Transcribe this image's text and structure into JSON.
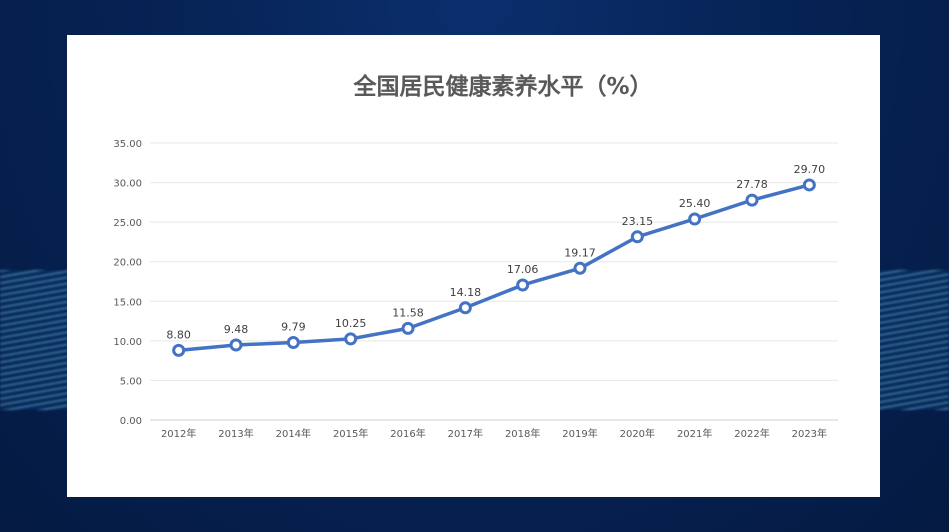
{
  "chart_data": {
    "type": "line",
    "title": "全国居民健康素养水平（%）",
    "xlabel": "",
    "ylabel": "",
    "categories": [
      "2012年",
      "2013年",
      "2014年",
      "2015年",
      "2016年",
      "2017年",
      "2018年",
      "2019年",
      "2020年",
      "2021年",
      "2022年",
      "2023年"
    ],
    "values": [
      8.8,
      9.48,
      9.79,
      10.25,
      11.58,
      14.18,
      17.06,
      19.17,
      23.15,
      25.4,
      27.78,
      29.7
    ],
    "labels": [
      "8.80",
      "9.48",
      "9.79",
      "10.25",
      "11.58",
      "14.18",
      "17.06",
      "19.17",
      "23.15",
      "25.40",
      "27.78",
      "29.70"
    ],
    "yticks": [
      "0.00",
      "5.00",
      "10.00",
      "15.00",
      "20.00",
      "25.00",
      "30.00",
      "35.00"
    ],
    "ylim": [
      0,
      35
    ],
    "grid": true,
    "colors": {
      "line": "#4472c4",
      "text": "#595959"
    }
  }
}
